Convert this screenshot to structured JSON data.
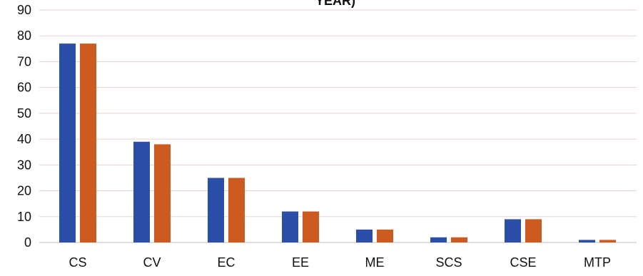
{
  "chart_data": {
    "type": "bar",
    "title": "YEAR)",
    "categories": [
      "CS",
      "CV",
      "EC",
      "EE",
      "ME",
      "SCS",
      "CSE",
      "MTP"
    ],
    "series": [
      {
        "values": [
          77,
          39,
          25,
          12,
          5,
          2,
          9,
          1
        ]
      },
      {
        "values": [
          77,
          38,
          25,
          12,
          5,
          2,
          9,
          1
        ]
      }
    ],
    "colors": [
      "#2b4fa6",
      "#cc5b1f"
    ],
    "ylim": [
      0,
      90
    ],
    "yticks": [
      0,
      10,
      20,
      30,
      40,
      50,
      60,
      70,
      80,
      90
    ],
    "grid": true,
    "legend": "none"
  }
}
